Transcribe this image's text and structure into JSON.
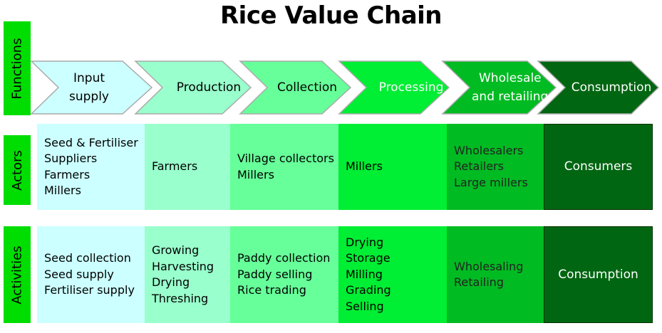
{
  "title": "Rice Value Chain",
  "row_labels": {
    "functions": "Functions",
    "actors": "Actors",
    "activities": "Activities"
  },
  "colors": {
    "label_green": "#00dd00",
    "stages": [
      "#ccffff",
      "#99ffcc",
      "#66ff99",
      "#00ee33",
      "#00bb22",
      "#006611"
    ],
    "chevron_text": [
      "#000000",
      "#000000",
      "#000000",
      "#ffffff",
      "#ffffff",
      "#ffffff"
    ]
  },
  "functions": [
    {
      "line1": "Input",
      "line2": "supply"
    },
    {
      "line1": "Production",
      "line2": ""
    },
    {
      "line1": "Collection",
      "line2": ""
    },
    {
      "line1": "Processing",
      "line2": ""
    },
    {
      "line1": "Wholesale",
      "line2": "and retailing"
    },
    {
      "line1": "Consumption",
      "line2": ""
    }
  ],
  "actors": [
    [
      "Seed & Fertiliser",
      "Suppliers",
      "Farmers",
      "Millers"
    ],
    [
      "Farmers"
    ],
    [
      "Village collectors",
      "Millers"
    ],
    [
      "Millers"
    ],
    [
      "Wholesalers",
      "Retailers",
      "Large millers"
    ],
    [
      "Consumers"
    ]
  ],
  "activities": [
    [
      "Seed collection",
      "Seed supply",
      "Fertiliser supply"
    ],
    [
      "Growing",
      "Harvesting",
      "Drying",
      "Threshing"
    ],
    [
      "Paddy collection",
      "Paddy selling",
      "Rice trading"
    ],
    [
      "Drying",
      "Storage",
      "Milling",
      "Grading",
      "Selling"
    ],
    [
      "Wholesaling",
      "Retailing"
    ],
    [
      "Consumption"
    ]
  ]
}
